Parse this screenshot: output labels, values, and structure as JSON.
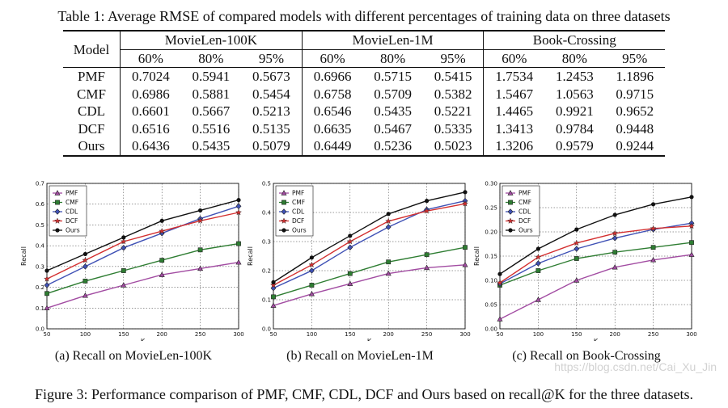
{
  "table": {
    "caption": "Table 1: Average RMSE of compared models with different percentages of training data on three datasets",
    "model_header": "Model",
    "datasets": [
      "MovieLen-100K",
      "MovieLen-1M",
      "Book-Crossing"
    ],
    "percentages": [
      "60%",
      "80%",
      "95%",
      "60%",
      "80%",
      "95%",
      "60%",
      "80%",
      "95%"
    ],
    "rows": [
      {
        "model": "PMF",
        "values": [
          "0.7024",
          "0.5941",
          "0.5673",
          "0.6966",
          "0.5715",
          "0.5415",
          "1.7534",
          "1.2453",
          "1.1896"
        ]
      },
      {
        "model": "CMF",
        "values": [
          "0.6986",
          "0.5881",
          "0.5454",
          "0.6758",
          "0.5709",
          "0.5382",
          "1.5467",
          "1.0563",
          "0.9715"
        ]
      },
      {
        "model": "CDL",
        "values": [
          "0.6601",
          "0.5667",
          "0.5213",
          "0.6546",
          "0.5435",
          "0.5221",
          "1.4465",
          "0.9921",
          "0.9652"
        ]
      },
      {
        "model": "DCF",
        "values": [
          "0.6516",
          "0.5516",
          "0.5135",
          "0.6635",
          "0.5467",
          "0.5335",
          "1.3413",
          "0.9784",
          "0.9448"
        ]
      },
      {
        "model": "Ours",
        "values": [
          "0.6436",
          "0.5435",
          "0.5079",
          "0.6449",
          "0.5236",
          "0.5023",
          "1.3206",
          "0.9579",
          "0.9244"
        ]
      }
    ]
  },
  "colors": {
    "PMF": "#a24ca2",
    "CMF": "#2e7d32",
    "CDL": "#3f51b5",
    "DCF": "#d32f2f",
    "Ours": "#111111"
  },
  "chart_data": [
    {
      "type": "line",
      "caption": "(a) Recall on MovieLen-100K",
      "xlabel": "K",
      "ylabel": "Recall",
      "x": [
        50,
        100,
        150,
        200,
        250,
        300
      ],
      "xlim": [
        50,
        300
      ],
      "ylim": [
        0.0,
        0.7
      ],
      "yticks": [
        "0.0",
        "0.1",
        "0.2",
        "0.3",
        "0.4",
        "0.5",
        "0.6",
        "0.7"
      ],
      "xticks": [
        "50",
        "100",
        "150",
        "200",
        "250",
        "300"
      ],
      "legend_position": "top-left",
      "series": [
        {
          "name": "PMF",
          "values": [
            0.1,
            0.16,
            0.21,
            0.26,
            0.29,
            0.32
          ]
        },
        {
          "name": "CMF",
          "values": [
            0.17,
            0.23,
            0.28,
            0.33,
            0.38,
            0.41
          ]
        },
        {
          "name": "CDL",
          "values": [
            0.21,
            0.3,
            0.39,
            0.46,
            0.53,
            0.59
          ]
        },
        {
          "name": "DCF",
          "values": [
            0.24,
            0.33,
            0.42,
            0.47,
            0.52,
            0.56
          ]
        },
        {
          "name": "Ours",
          "values": [
            0.28,
            0.36,
            0.44,
            0.52,
            0.57,
            0.62
          ]
        }
      ]
    },
    {
      "type": "line",
      "caption": "(b) Recall on MovieLen-1M",
      "xlabel": "K",
      "ylabel": "Recall",
      "x": [
        50,
        100,
        150,
        200,
        250,
        300
      ],
      "xlim": [
        50,
        300
      ],
      "ylim": [
        0.0,
        0.5
      ],
      "yticks": [
        "0.0",
        "0.1",
        "0.2",
        "0.3",
        "0.4",
        "0.5"
      ],
      "xticks": [
        "50",
        "100",
        "150",
        "200",
        "250",
        "300"
      ],
      "legend_position": "top-left",
      "series": [
        {
          "name": "PMF",
          "values": [
            0.08,
            0.12,
            0.155,
            0.19,
            0.21,
            0.22
          ]
        },
        {
          "name": "CMF",
          "values": [
            0.11,
            0.15,
            0.19,
            0.23,
            0.255,
            0.28
          ]
        },
        {
          "name": "CDL",
          "values": [
            0.14,
            0.2,
            0.28,
            0.35,
            0.41,
            0.44
          ]
        },
        {
          "name": "DCF",
          "values": [
            0.15,
            0.22,
            0.3,
            0.37,
            0.405,
            0.43
          ]
        },
        {
          "name": "Ours",
          "values": [
            0.16,
            0.245,
            0.32,
            0.395,
            0.44,
            0.47
          ]
        }
      ]
    },
    {
      "type": "line",
      "caption": "(c) Recall on Book-Crossing",
      "xlabel": "K",
      "ylabel": "Recall",
      "x": [
        50,
        100,
        150,
        200,
        250,
        300
      ],
      "xlim": [
        50,
        300
      ],
      "ylim": [
        0.0,
        0.3
      ],
      "yticks": [
        "0.00",
        "0.05",
        "0.10",
        "0.15",
        "0.20",
        "0.25",
        "0.30"
      ],
      "xticks": [
        "50",
        "100",
        "150",
        "200",
        "250",
        "300"
      ],
      "legend_position": "top-left",
      "series": [
        {
          "name": "PMF",
          "values": [
            0.02,
            0.06,
            0.1,
            0.127,
            0.142,
            0.153
          ]
        },
        {
          "name": "CMF",
          "values": [
            0.09,
            0.12,
            0.145,
            0.158,
            0.168,
            0.178
          ]
        },
        {
          "name": "CDL",
          "values": [
            0.093,
            0.135,
            0.165,
            0.187,
            0.205,
            0.218
          ]
        },
        {
          "name": "DCF",
          "values": [
            0.095,
            0.148,
            0.177,
            0.197,
            0.207,
            0.212
          ]
        },
        {
          "name": "Ours",
          "values": [
            0.113,
            0.165,
            0.205,
            0.235,
            0.257,
            0.272
          ]
        }
      ]
    }
  ],
  "figure_caption": "Figure 3: Performance comparison of PMF, CMF, CDL, DCF and Ours based on recall@K for the three datasets.",
  "watermark": "https://blog.csdn.net/Cai_Xu_Jin"
}
